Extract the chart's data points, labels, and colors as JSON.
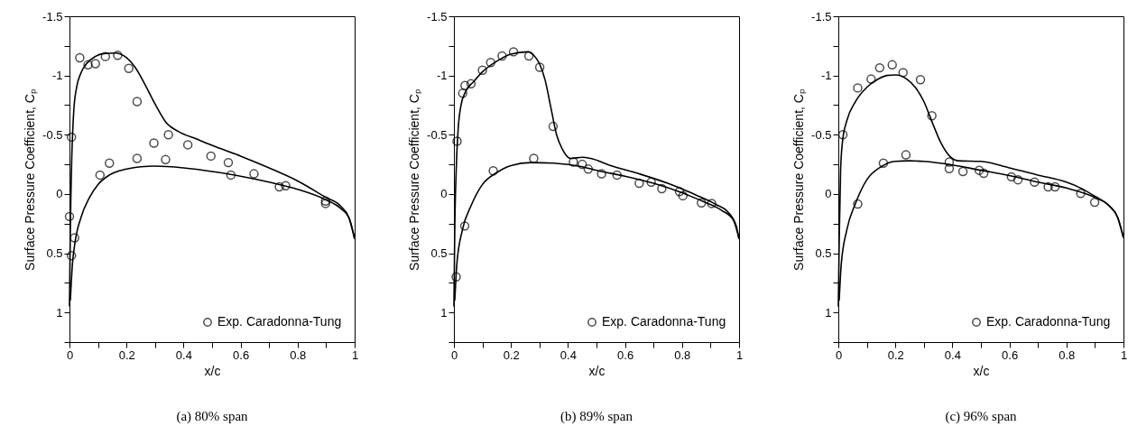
{
  "chart_data": [
    {
      "type": "line",
      "title": "(a) 80% span",
      "xlabel": "x/c",
      "ylabel": "Surface Pressure Coefficient, Cₚ",
      "xlim": [
        0,
        1
      ],
      "ylim": [
        1.25,
        -1.5
      ],
      "xticks": [
        0,
        {
          "value": 0.1,
          "label": null
        },
        0.2,
        {
          "value": 0.3,
          "label": null
        },
        0.4,
        {
          "value": 0.5,
          "label": null
        },
        0.6,
        {
          "value": 0.7,
          "label": null
        },
        0.8,
        {
          "value": 0.9,
          "label": null
        },
        1
      ],
      "yticks": [
        -1.5,
        {
          "value": -1.25,
          "label": null
        },
        -1,
        {
          "value": -0.75,
          "label": null
        },
        -0.5,
        {
          "value": -0.25,
          "label": null
        },
        0,
        {
          "value": 0.25,
          "label": null
        },
        0.5,
        {
          "value": 0.75,
          "label": null
        },
        1,
        {
          "value": 1.25,
          "label": null
        }
      ],
      "grid": false,
      "legend": "bottom right",
      "marker": "circle",
      "line_style": "solid",
      "series": [
        {
          "name": "Exp. Caradonna-Tung",
          "type": "scatter",
          "color": "#000000",
          "x": [
            0.036,
            0.065,
            0.091,
            0.126,
            0.169,
            0.208,
            0.237,
            0.347,
            0.296,
            0.415,
            0.496,
            0.557,
            0.566,
            0.647,
            0.736,
            0.758,
            0.898,
            0.898,
            0.237,
            0.337,
            0.14,
            0.107,
            0.007,
            0.0,
            0.018,
            0.007
          ],
          "values": [
            -1.15,
            -1.09,
            -1.1,
            -1.16,
            -1.17,
            -1.06,
            -0.78,
            -0.5,
            -0.43,
            -0.415,
            -0.32,
            -0.265,
            -0.16,
            -0.17,
            -0.06,
            -0.07,
            0.06,
            0.08,
            -0.3,
            -0.29,
            -0.26,
            -0.16,
            -0.48,
            0.19,
            0.37,
            0.52
          ]
        },
        {
          "type": "line",
          "marker": "none",
          "color": "#000000",
          "x": [
            0,
            0.003,
            0.008,
            0.015,
            0.025,
            0.04,
            0.06,
            0.09,
            0.12,
            0.16,
            0.2,
            0.23,
            0.27,
            0.3,
            0.34,
            0.38,
            0.45,
            0.5,
            0.6,
            0.7,
            0.8,
            0.9,
            0.95,
            0.98,
            1
          ],
          "values": [
            0.95,
            0.3,
            -0.3,
            -0.7,
            -0.9,
            -1.02,
            -1.1,
            -1.16,
            -1.185,
            -1.19,
            -1.15,
            -1.07,
            -0.9,
            -0.76,
            -0.6,
            -0.53,
            -0.46,
            -0.41,
            -0.32,
            -0.22,
            -0.11,
            0.03,
            0.1,
            0.2,
            0.38
          ]
        },
        {
          "type": "line",
          "marker": "none",
          "color": "#000000",
          "x": [
            0.003,
            0.01,
            0.02,
            0.04,
            0.07,
            0.1,
            0.14,
            0.2,
            0.25,
            0.3,
            0.4,
            0.5,
            0.6,
            0.7,
            0.8,
            0.9,
            0.95,
            0.98,
            1
          ],
          "values": [
            0.9,
            0.6,
            0.4,
            0.2,
            0.03,
            -0.08,
            -0.16,
            -0.21,
            -0.23,
            -0.235,
            -0.22,
            -0.19,
            -0.15,
            -0.1,
            -0.04,
            0.05,
            0.12,
            0.2,
            0.38
          ]
        }
      ]
    },
    {
      "type": "line",
      "title": "(b) 89% span",
      "xlabel": "x/c",
      "ylabel": "Surface Pressure Coefficient, Cₚ",
      "xlim": [
        0,
        1
      ],
      "ylim": [
        1.25,
        -1.5
      ],
      "xticks": [
        0,
        {
          "value": 0.1,
          "label": null
        },
        0.2,
        {
          "value": 0.3,
          "label": null
        },
        0.4,
        {
          "value": 0.5,
          "label": null
        },
        0.6,
        {
          "value": 0.7,
          "label": null
        },
        0.8,
        {
          "value": 0.9,
          "label": null
        },
        1
      ],
      "yticks": [
        -1.5,
        {
          "value": -1.25,
          "label": null
        },
        -1,
        {
          "value": -0.75,
          "label": null
        },
        -0.5,
        {
          "value": -0.25,
          "label": null
        },
        0,
        {
          "value": 0.25,
          "label": null
        },
        0.5,
        {
          "value": 0.75,
          "label": null
        },
        1,
        {
          "value": 1.25,
          "label": null
        }
      ],
      "grid": false,
      "legend": "bottom right",
      "marker": "circle",
      "line_style": "solid",
      "series": [
        {
          "name": "Exp. Caradonna-Tung",
          "type": "scatter",
          "color": "#000000",
          "x": [
            0.011,
            0.031,
            0.039,
            0.06,
            0.1,
            0.129,
            0.169,
            0.209,
            0.263,
            0.301,
            0.348,
            0.28,
            0.138,
            0.038,
            0.008,
            0.419,
            0.45,
            0.471,
            0.518,
            0.572,
            0.65,
            0.692,
            0.729,
            0.791,
            0.803,
            0.868,
            0.904
          ],
          "values": [
            -0.445,
            -0.85,
            -0.915,
            -0.93,
            -1.045,
            -1.11,
            -1.165,
            -1.2,
            -1.165,
            -1.07,
            -0.57,
            -0.3,
            -0.195,
            0.27,
            0.7,
            -0.27,
            -0.25,
            -0.21,
            -0.17,
            -0.16,
            -0.09,
            -0.1,
            -0.045,
            -0.02,
            0.015,
            0.075,
            0.08
          ]
        },
        {
          "type": "line",
          "marker": "none",
          "color": "#000000",
          "x": [
            0,
            0.003,
            0.008,
            0.015,
            0.025,
            0.04,
            0.07,
            0.1,
            0.15,
            0.2,
            0.26,
            0.28,
            0.3,
            0.32,
            0.34,
            0.36,
            0.38,
            0.41,
            0.45,
            0.48,
            0.55,
            0.65,
            0.75,
            0.85,
            0.92,
            0.96,
            0.99,
            1
          ],
          "values": [
            0.95,
            0.3,
            -0.2,
            -0.55,
            -0.75,
            -0.86,
            -0.95,
            -1.03,
            -1.12,
            -1.18,
            -1.2,
            -1.17,
            -1.1,
            -0.96,
            -0.73,
            -0.5,
            -0.38,
            -0.3,
            -0.31,
            -0.3,
            -0.24,
            -0.17,
            -0.09,
            0.01,
            0.09,
            0.15,
            0.27,
            0.38
          ]
        },
        {
          "type": "line",
          "marker": "none",
          "color": "#000000",
          "x": [
            0.003,
            0.01,
            0.03,
            0.06,
            0.1,
            0.15,
            0.2,
            0.27,
            0.35,
            0.45,
            0.5,
            0.6,
            0.7,
            0.8,
            0.88,
            0.94,
            0.98,
            1
          ],
          "values": [
            0.9,
            0.6,
            0.3,
            0.1,
            -0.08,
            -0.18,
            -0.24,
            -0.265,
            -0.26,
            -0.23,
            -0.2,
            -0.15,
            -0.09,
            -0.01,
            0.07,
            0.14,
            0.22,
            0.38
          ]
        }
      ]
    },
    {
      "type": "line",
      "title": "(c) 96% span",
      "xlabel": "x/c",
      "ylabel": "Surface Pressure Coefficient, Cₚ",
      "xlim": [
        0,
        1
      ],
      "ylim": [
        1.25,
        -1.5
      ],
      "xticks": [
        0,
        {
          "value": 0.1,
          "label": null
        },
        0.2,
        {
          "value": 0.3,
          "label": null
        },
        0.4,
        {
          "value": 0.5,
          "label": null
        },
        0.6,
        {
          "value": 0.7,
          "label": null
        },
        0.8,
        {
          "value": 0.9,
          "label": null
        },
        1
      ],
      "yticks": [
        -1.5,
        {
          "value": -1.25,
          "label": null
        },
        -1,
        {
          "value": -0.75,
          "label": null
        },
        -0.5,
        {
          "value": -0.25,
          "label": null
        },
        0,
        {
          "value": 0.25,
          "label": null
        },
        0.5,
        {
          "value": 0.75,
          "label": null
        },
        1,
        {
          "value": 1.25,
          "label": null
        }
      ],
      "grid": false,
      "legend": "bottom right",
      "marker": "circle",
      "line_style": "solid",
      "series": [
        {
          "name": "Exp. Caradonna-Tung",
          "type": "scatter",
          "color": "#000000",
          "x": [
            0.016,
            0.068,
            0.115,
            0.145,
            0.189,
            0.227,
            0.288,
            0.328,
            0.237,
            0.158,
            0.068,
            0.389,
            0.389,
            0.437,
            0.494,
            0.51,
            0.607,
            0.63,
            0.688,
            0.736,
            0.76,
            0.85,
            0.899
          ],
          "values": [
            -0.5,
            -0.895,
            -0.97,
            -1.065,
            -1.09,
            -1.025,
            -0.965,
            -0.66,
            -0.33,
            -0.26,
            0.085,
            -0.27,
            -0.215,
            -0.19,
            -0.2,
            -0.175,
            -0.145,
            -0.12,
            -0.1,
            -0.06,
            -0.06,
            -0.005,
            0.07
          ]
        },
        {
          "type": "line",
          "marker": "none",
          "color": "#000000",
          "x": [
            0,
            0.003,
            0.008,
            0.015,
            0.03,
            0.06,
            0.1,
            0.14,
            0.17,
            0.2,
            0.24,
            0.27,
            0.3,
            0.33,
            0.36,
            0.39,
            0.42,
            0.5,
            0.6,
            0.7,
            0.8,
            0.85,
            0.9,
            0.95,
            0.98,
            1
          ],
          "values": [
            0.95,
            0.4,
            -0.2,
            -0.45,
            -0.62,
            -0.78,
            -0.9,
            -0.97,
            -1.0,
            -1.005,
            -0.97,
            -0.9,
            -0.78,
            -0.6,
            -0.43,
            -0.32,
            -0.28,
            -0.275,
            -0.22,
            -0.16,
            -0.1,
            -0.05,
            0.02,
            0.1,
            0.2,
            0.37
          ]
        },
        {
          "type": "line",
          "marker": "none",
          "color": "#000000",
          "x": [
            0.003,
            0.01,
            0.03,
            0.06,
            0.1,
            0.15,
            0.2,
            0.25,
            0.3,
            0.4,
            0.5,
            0.6,
            0.7,
            0.8,
            0.9,
            0.95,
            0.98,
            1
          ],
          "values": [
            0.9,
            0.6,
            0.3,
            0.08,
            -0.12,
            -0.23,
            -0.275,
            -0.28,
            -0.275,
            -0.245,
            -0.2,
            -0.155,
            -0.1,
            -0.05,
            0.03,
            0.1,
            0.2,
            0.37
          ]
        }
      ]
    }
  ]
}
